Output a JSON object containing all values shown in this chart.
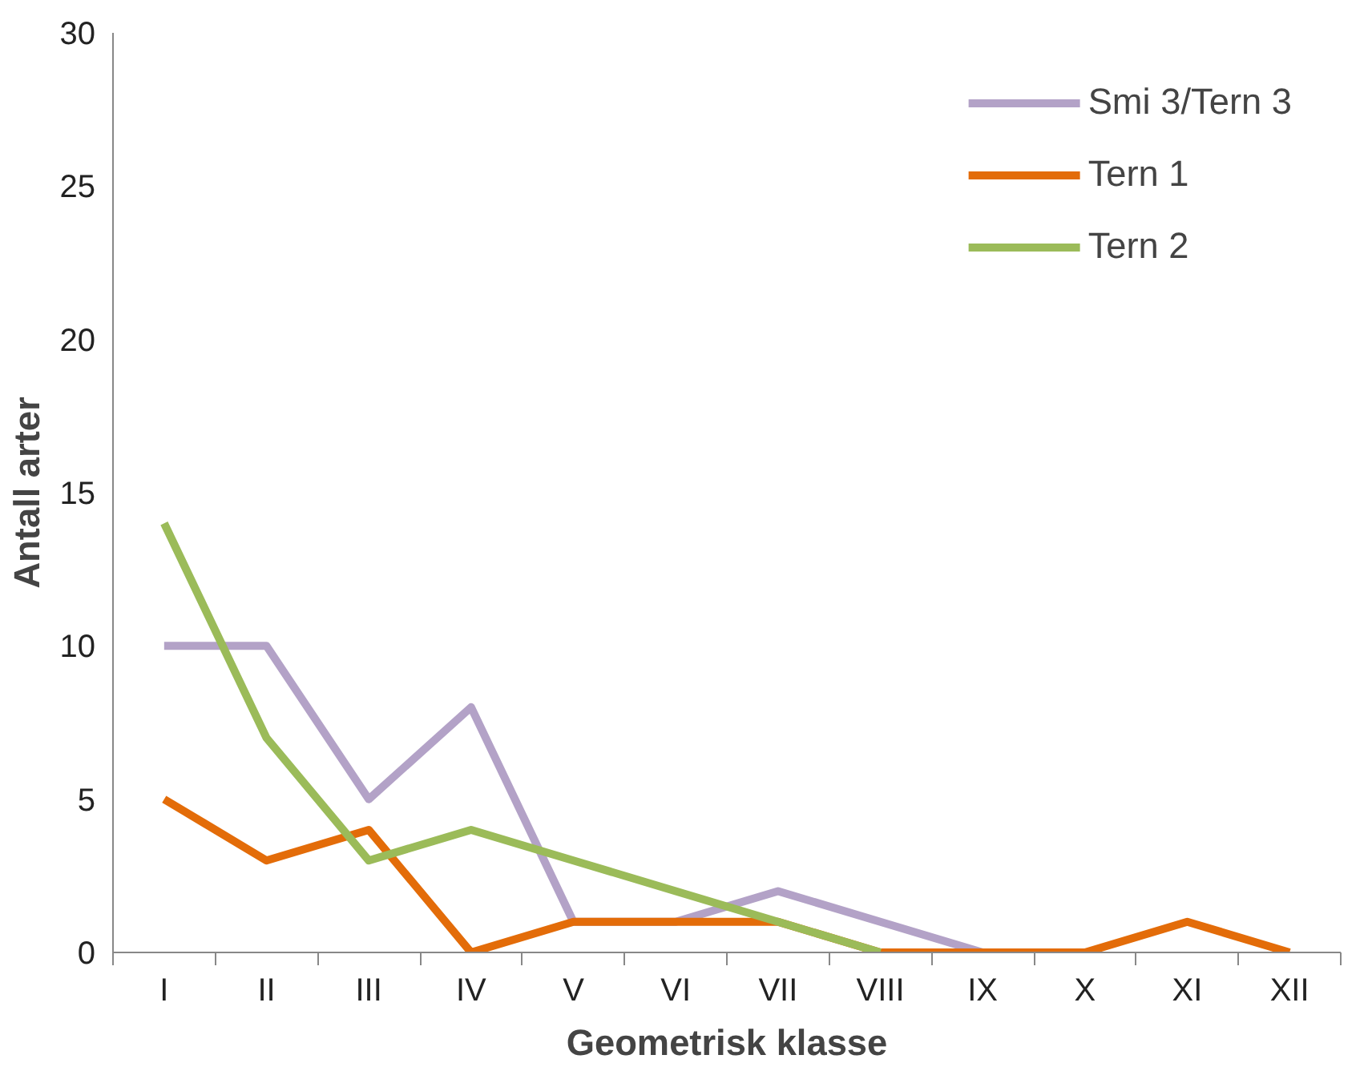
{
  "chart_data": {
    "type": "line",
    "xlabel": "Geometrisk klasse",
    "ylabel": "Antall arter",
    "categories": [
      "I",
      "II",
      "III",
      "IV",
      "V",
      "VI",
      "VII",
      "VIII",
      "IX",
      "X",
      "XI",
      "XII"
    ],
    "series": [
      {
        "name": "Smi 3/Tern 3",
        "color": "#b3a2c7",
        "values": [
          10,
          10,
          5,
          8,
          1,
          1,
          2,
          1,
          0,
          null,
          null,
          null
        ]
      },
      {
        "name": "Tern 1",
        "color": "#e36c09",
        "values": [
          5,
          3,
          4,
          0,
          1,
          1,
          1,
          0,
          0,
          0,
          1,
          0
        ]
      },
      {
        "name": "Tern 2",
        "color": "#9bbb59",
        "values": [
          14,
          7,
          3,
          4,
          3,
          2,
          1,
          0,
          null,
          null,
          null,
          null
        ]
      }
    ],
    "ylim": [
      0,
      30
    ],
    "yticks": [
      0,
      5,
      10,
      15,
      20,
      25,
      30
    ],
    "grid": false,
    "legend": "top right",
    "marker": "none",
    "line_style": "solid"
  }
}
